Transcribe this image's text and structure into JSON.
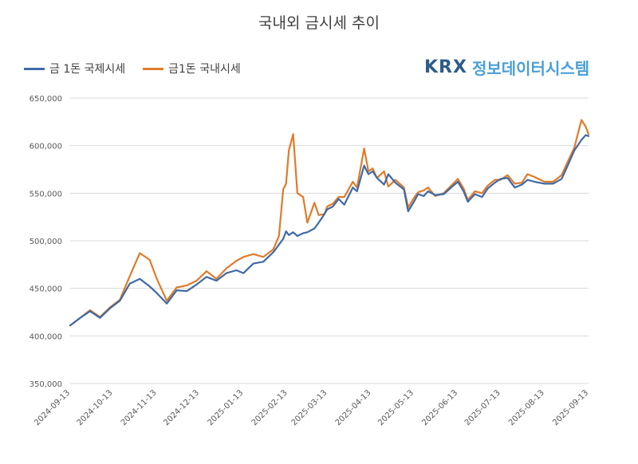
{
  "chart_data": {
    "type": "line",
    "title": "국내외 금시세 추이",
    "xlabel": "",
    "ylabel": "",
    "ylim": [
      350000,
      650000
    ],
    "yticks": [
      350000,
      400000,
      450000,
      500000,
      550000,
      600000,
      650000
    ],
    "ytick_labels": [
      "350,000",
      "400,000",
      "450,000",
      "500,000",
      "550,000",
      "600,000",
      "650,000"
    ],
    "xtick_labels": [
      "2024-09-13",
      "2024-10-13",
      "2024-11-13",
      "2024-12-13",
      "2025-01-13",
      "2025-02-13",
      "2025-03-13",
      "2025-04-13",
      "2025-05-13",
      "2025-06-13",
      "2025-07-13",
      "2025-08-13",
      "2025-09-13"
    ],
    "grid": true,
    "legend": "top-left",
    "x": [
      "2024-09-13",
      "2024-09-20",
      "2024-09-27",
      "2024-10-04",
      "2024-10-11",
      "2024-10-18",
      "2024-10-25",
      "2024-11-01",
      "2024-11-08",
      "2024-11-13",
      "2024-11-20",
      "2024-11-27",
      "2024-12-04",
      "2024-12-11",
      "2024-12-18",
      "2024-12-25",
      "2025-01-01",
      "2025-01-08",
      "2025-01-13",
      "2025-01-20",
      "2025-01-27",
      "2025-02-03",
      "2025-02-07",
      "2025-02-10",
      "2025-02-12",
      "2025-02-14",
      "2025-02-17",
      "2025-02-20",
      "2025-02-24",
      "2025-02-27",
      "2025-03-04",
      "2025-03-07",
      "2025-03-11",
      "2025-03-13",
      "2025-03-17",
      "2025-03-21",
      "2025-03-25",
      "2025-03-31",
      "2025-04-03",
      "2025-04-08",
      "2025-04-11",
      "2025-04-14",
      "2025-04-17",
      "2025-04-22",
      "2025-04-25",
      "2025-04-30",
      "2025-05-06",
      "2025-05-09",
      "2025-05-13",
      "2025-05-16",
      "2025-05-20",
      "2025-05-23",
      "2025-05-28",
      "2025-06-03",
      "2025-06-09",
      "2025-06-13",
      "2025-06-17",
      "2025-06-20",
      "2025-06-25",
      "2025-06-30",
      "2025-07-04",
      "2025-07-09",
      "2025-07-13",
      "2025-07-18",
      "2025-07-23",
      "2025-07-28",
      "2025-08-01",
      "2025-08-06",
      "2025-08-13",
      "2025-08-19",
      "2025-08-25",
      "2025-08-29",
      "2025-09-03",
      "2025-09-08",
      "2025-09-11",
      "2025-09-13"
    ],
    "series": [
      {
        "name": "금 1돈 국제시세",
        "color": "#3f6aa8",
        "values": [
          411000,
          419000,
          426000,
          419000,
          429000,
          437000,
          455000,
          460000,
          452000,
          445000,
          434000,
          448000,
          447000,
          454000,
          462000,
          458000,
          466000,
          469000,
          466000,
          476000,
          478000,
          488000,
          496000,
          502000,
          510000,
          506000,
          509000,
          505000,
          508000,
          509000,
          513000,
          519000,
          528000,
          533000,
          536000,
          544000,
          538000,
          556000,
          552000,
          579000,
          570000,
          573000,
          566000,
          559000,
          570000,
          561000,
          554000,
          531000,
          541000,
          549000,
          547000,
          552000,
          548000,
          549000,
          557000,
          562000,
          552000,
          541000,
          549000,
          546000,
          555000,
          561000,
          565000,
          566000,
          556000,
          559000,
          564000,
          562000,
          560000,
          560000,
          565000,
          578000,
          595000,
          606000,
          611000,
          610000
        ]
      },
      {
        "name": "금1돈 국내시세",
        "color": "#e07b2a",
        "values": [
          411000,
          419000,
          427000,
          420000,
          430000,
          438000,
          463000,
          487000,
          480000,
          460000,
          437000,
          451000,
          453000,
          458000,
          468000,
          460000,
          471000,
          479000,
          483000,
          486000,
          483000,
          491000,
          505000,
          554000,
          560000,
          595000,
          612000,
          550000,
          546000,
          519000,
          540000,
          527000,
          528000,
          536000,
          539000,
          546000,
          546000,
          562000,
          556000,
          597000,
          573000,
          576000,
          566000,
          573000,
          557000,
          564000,
          556000,
          535000,
          545000,
          551000,
          553000,
          556000,
          547000,
          550000,
          559000,
          565000,
          555000,
          543000,
          552000,
          550000,
          558000,
          564000,
          564000,
          569000,
          560000,
          561000,
          570000,
          567000,
          562000,
          562000,
          569000,
          582000,
          598000,
          627000,
          620000,
          612000
        ]
      }
    ]
  },
  "logo": {
    "mark": "KRX",
    "text": "정보데이터시스템"
  }
}
